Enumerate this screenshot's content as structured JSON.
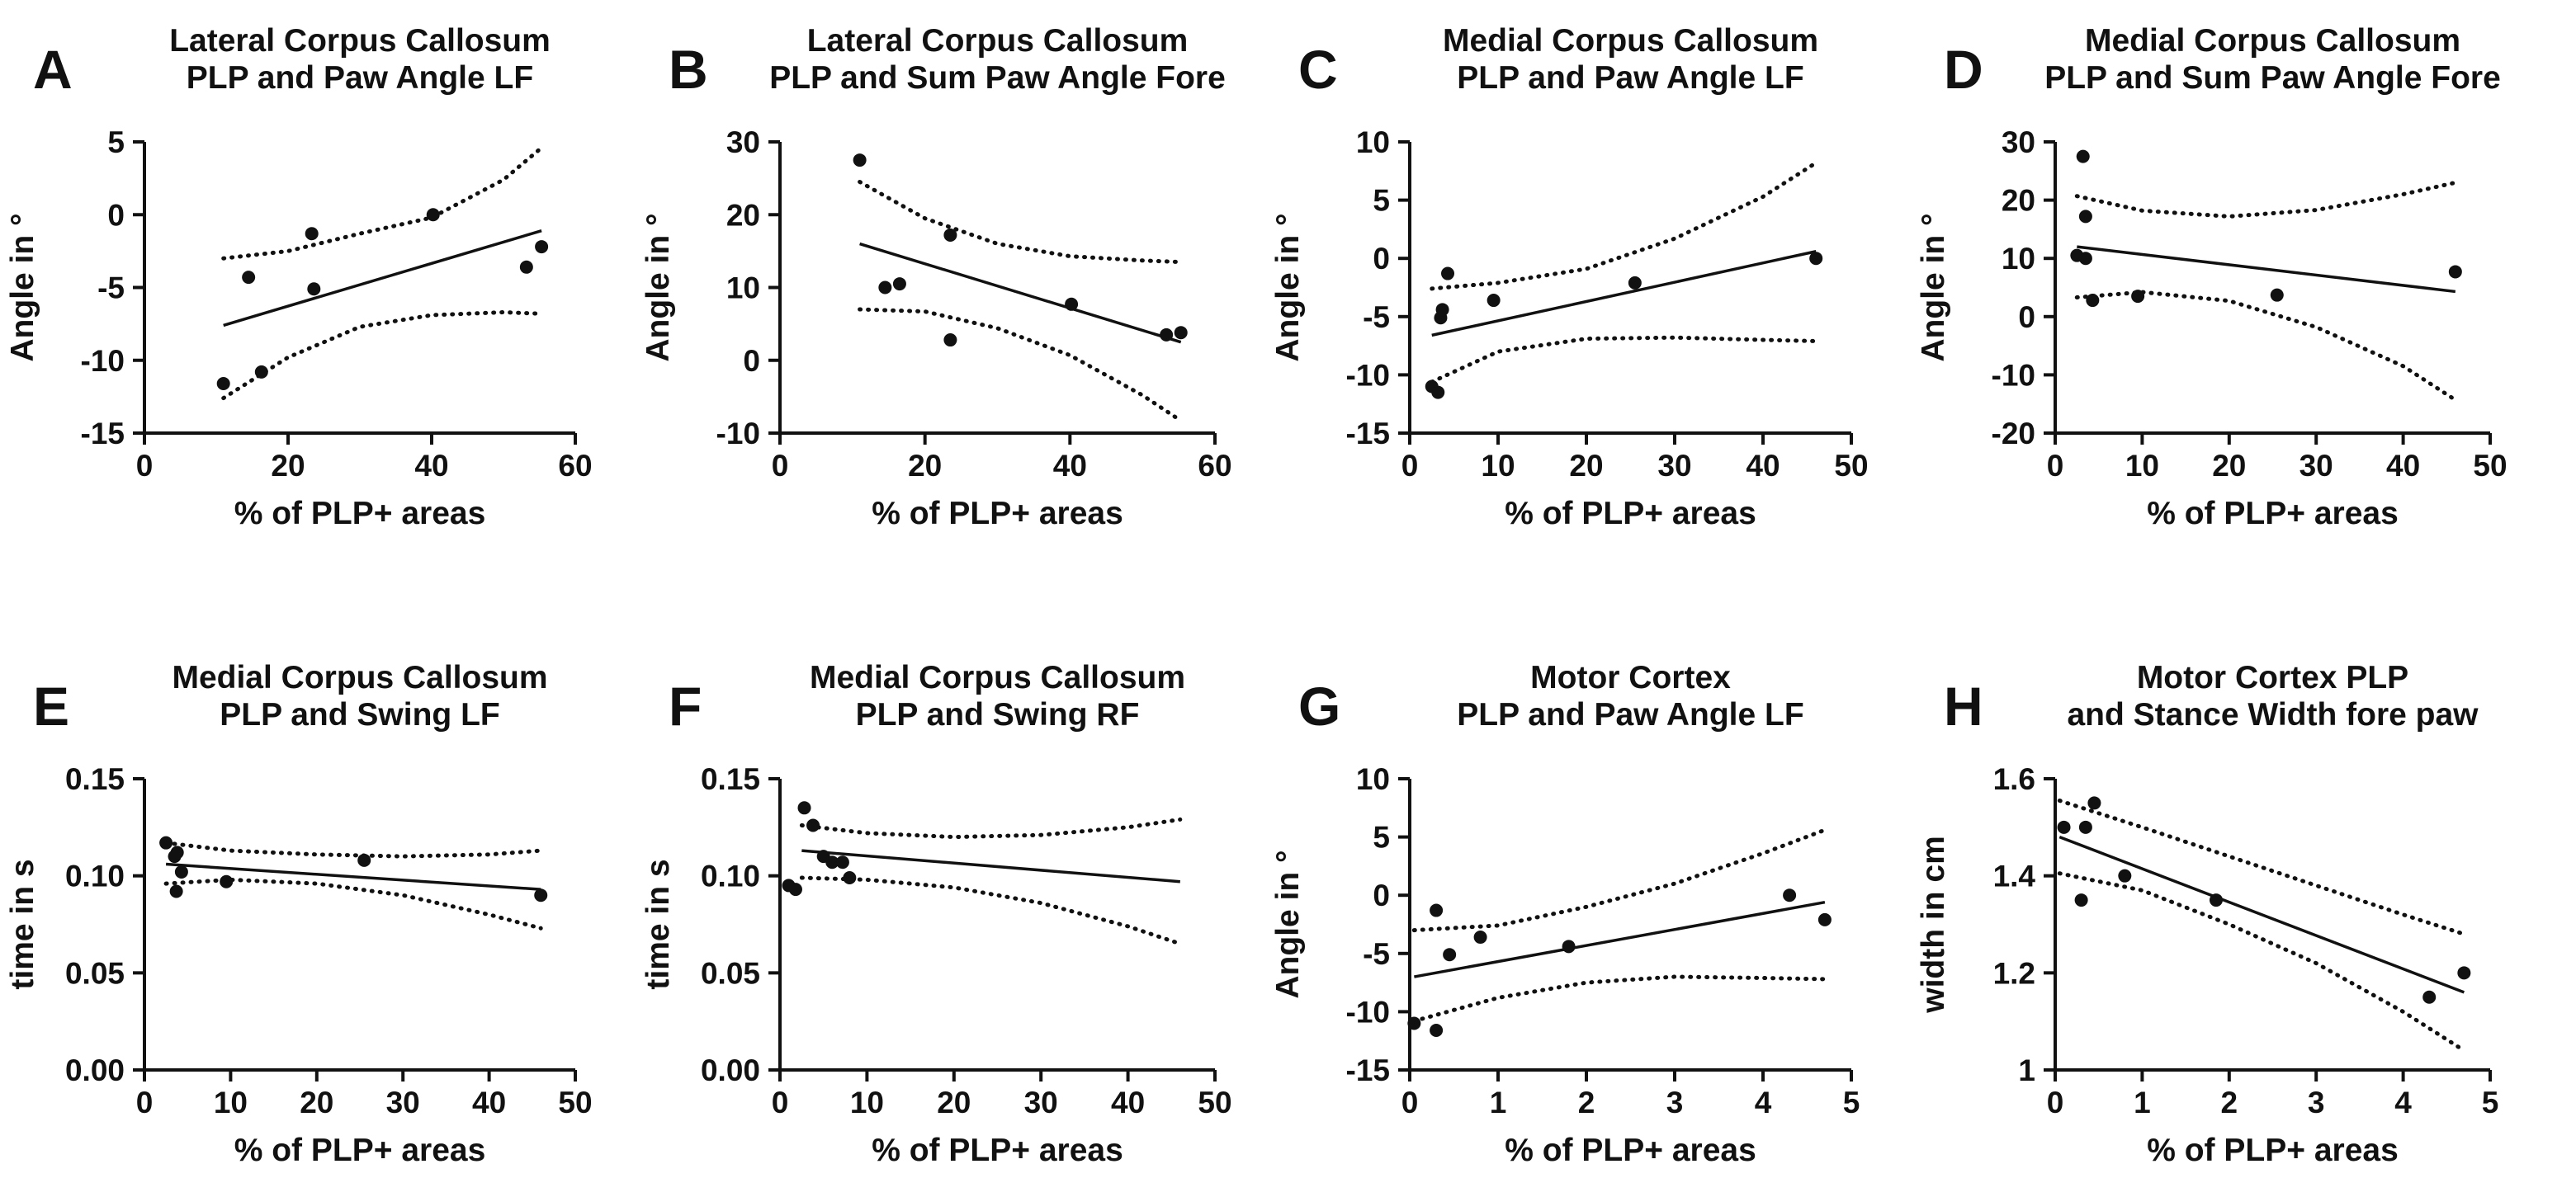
{
  "chart_data": [
    {
      "panel": "A",
      "type": "scatter",
      "title": [
        "Lateral Corpus Callosum",
        "PLP and Paw Angle LF"
      ],
      "xlabel": "% of PLP+ areas",
      "ylabel": "Angle in °",
      "xlim": [
        0,
        60
      ],
      "ylim": [
        -15,
        5
      ],
      "xticks": [
        0,
        20,
        40,
        60
      ],
      "yticks": [
        -15,
        -10,
        -5,
        0,
        5
      ],
      "points": [
        [
          11,
          -11.6
        ],
        [
          14.5,
          -4.3
        ],
        [
          16.3,
          -10.8
        ],
        [
          23.3,
          -1.3
        ],
        [
          23.6,
          -5.1
        ],
        [
          40.2,
          0
        ],
        [
          53.2,
          -3.6
        ],
        [
          55.3,
          -2.2
        ]
      ],
      "fit": {
        "x": [
          11,
          55.3
        ],
        "y": [
          -7.6,
          -1.1
        ]
      },
      "ci_upper": {
        "x": [
          11,
          20,
          30,
          40,
          50,
          55.3
        ],
        "y": [
          -3.0,
          -2.5,
          -1.3,
          -0.2,
          2.4,
          4.6
        ]
      },
      "ci_lower": {
        "x": [
          11,
          20,
          30,
          40,
          50,
          55.3
        ],
        "y": [
          -12.6,
          -9.8,
          -7.7,
          -6.9,
          -6.7,
          -6.8
        ]
      }
    },
    {
      "panel": "B",
      "type": "scatter",
      "title": [
        "Lateral Corpus Callosum",
        "PLP and Sum Paw Angle Fore"
      ],
      "xlabel": "% of PLP+ areas",
      "ylabel": "Angle in °",
      "xlim": [
        0,
        60
      ],
      "ylim": [
        -10,
        30
      ],
      "xticks": [
        0,
        20,
        40,
        60
      ],
      "yticks": [
        -10,
        0,
        10,
        20,
        30
      ],
      "points": [
        [
          11,
          27.5
        ],
        [
          14.5,
          10.0
        ],
        [
          16.5,
          10.5
        ],
        [
          23.5,
          17.2
        ],
        [
          23.5,
          2.8
        ],
        [
          40.2,
          7.7
        ],
        [
          53.3,
          3.5
        ],
        [
          55.3,
          3.8
        ]
      ],
      "fit": {
        "x": [
          11,
          55.3
        ],
        "y": [
          16.0,
          2.5
        ]
      },
      "ci_upper": {
        "x": [
          11,
          20,
          30,
          40,
          50,
          55.3
        ],
        "y": [
          24.5,
          19.5,
          16.0,
          14.3,
          13.7,
          13.5
        ]
      },
      "ci_lower": {
        "x": [
          11,
          20,
          30,
          40,
          50,
          55.3
        ],
        "y": [
          7.0,
          6.7,
          4.4,
          0.7,
          -4.8,
          -8.3
        ]
      }
    },
    {
      "panel": "C",
      "type": "scatter",
      "title": [
        "Medial Corpus Callosum",
        "PLP and Paw Angle LF"
      ],
      "xlabel": "% of PLP+ areas",
      "ylabel": "Angle in °",
      "xlim": [
        0,
        50
      ],
      "ylim": [
        -15,
        10
      ],
      "xticks": [
        0,
        10,
        20,
        30,
        40,
        50
      ],
      "yticks": [
        -15,
        -10,
        -5,
        0,
        5,
        10
      ],
      "points": [
        [
          2.5,
          -11.0
        ],
        [
          3.2,
          -11.5
        ],
        [
          3.5,
          -5.1
        ],
        [
          3.7,
          -4.4
        ],
        [
          4.3,
          -1.3
        ],
        [
          9.5,
          -3.6
        ],
        [
          25.5,
          -2.1
        ],
        [
          46,
          0
        ]
      ],
      "fit": {
        "x": [
          2.5,
          46
        ],
        "y": [
          -6.6,
          0.6
        ]
      },
      "ci_upper": {
        "x": [
          2.5,
          10,
          20,
          30,
          40,
          46
        ],
        "y": [
          -2.6,
          -2.1,
          -0.9,
          1.7,
          5.3,
          8.2
        ]
      },
      "ci_lower": {
        "x": [
          2.5,
          10,
          20,
          30,
          40,
          46
        ],
        "y": [
          -10.6,
          -8.0,
          -6.9,
          -6.8,
          -7.0,
          -7.1
        ]
      }
    },
    {
      "panel": "D",
      "type": "scatter",
      "title": [
        "Medial Corpus Callosum",
        "PLP and Sum Paw Angle Fore"
      ],
      "xlabel": "% of PLP+ areas",
      "ylabel": "Angle in °",
      "xlim": [
        0,
        50
      ],
      "ylim": [
        -20,
        30
      ],
      "xticks": [
        0,
        10,
        20,
        30,
        40,
        50
      ],
      "yticks": [
        -20,
        -10,
        0,
        10,
        20,
        30
      ],
      "points": [
        [
          2.5,
          10.5
        ],
        [
          3.2,
          27.5
        ],
        [
          3.5,
          10.0
        ],
        [
          3.5,
          17.2
        ],
        [
          4.3,
          2.8
        ],
        [
          9.5,
          3.5
        ],
        [
          25.5,
          3.7
        ],
        [
          46,
          7.7
        ]
      ],
      "fit": {
        "x": [
          2.5,
          46
        ],
        "y": [
          12.0,
          4.3
        ]
      },
      "ci_upper": {
        "x": [
          2.5,
          10,
          20,
          30,
          40,
          46
        ],
        "y": [
          20.7,
          18.2,
          17.2,
          18.3,
          21.0,
          23.0
        ]
      },
      "ci_lower": {
        "x": [
          2.5,
          10,
          20,
          30,
          40,
          46
        ],
        "y": [
          3.3,
          4.2,
          2.7,
          -1.8,
          -8.5,
          -14.3
        ]
      }
    },
    {
      "panel": "E",
      "type": "scatter",
      "title": [
        "Medial Corpus Callosum",
        "PLP and Swing LF"
      ],
      "xlabel": "% of PLP+ areas",
      "ylabel": "time in s",
      "xlim": [
        0,
        50
      ],
      "ylim": [
        0.0,
        0.15
      ],
      "xticks": [
        0,
        10,
        20,
        30,
        40,
        50
      ],
      "yticks": [
        0.0,
        0.05,
        0.1,
        0.15
      ],
      "ytick_labels": [
        "0.00",
        "0.05",
        "0.10",
        "0.15"
      ],
      "points": [
        [
          2.5,
          0.117
        ],
        [
          3.5,
          0.11
        ],
        [
          3.8,
          0.112
        ],
        [
          3.7,
          0.092
        ],
        [
          4.3,
          0.102
        ],
        [
          9.5,
          0.097
        ],
        [
          25.5,
          0.108
        ],
        [
          46,
          0.09
        ]
      ],
      "fit": {
        "x": [
          2.5,
          46
        ],
        "y": [
          0.106,
          0.093
        ]
      },
      "ci_upper": {
        "x": [
          2.5,
          10,
          20,
          30,
          40,
          46
        ],
        "y": [
          0.117,
          0.113,
          0.111,
          0.11,
          0.111,
          0.113
        ]
      },
      "ci_lower": {
        "x": [
          2.5,
          10,
          20,
          30,
          40,
          46
        ],
        "y": [
          0.096,
          0.098,
          0.096,
          0.09,
          0.08,
          0.073
        ]
      }
    },
    {
      "panel": "F",
      "type": "scatter",
      "title": [
        "Medial Corpus Callosum",
        "PLP and Swing RF"
      ],
      "xlabel": "% of PLP+ areas",
      "ylabel": "time in s",
      "xlim": [
        0,
        50
      ],
      "ylim": [
        0.0,
        0.15
      ],
      "xticks": [
        0,
        10,
        20,
        30,
        40,
        50
      ],
      "yticks": [
        0.0,
        0.05,
        0.1,
        0.15
      ],
      "ytick_labels": [
        "0.00",
        "0.05",
        "0.10",
        "0.15"
      ],
      "points": [
        [
          1.0,
          0.095
        ],
        [
          1.8,
          0.093
        ],
        [
          2.8,
          0.135
        ],
        [
          3.8,
          0.126
        ],
        [
          5.0,
          0.11
        ],
        [
          6.0,
          0.107
        ],
        [
          7.2,
          0.107
        ],
        [
          8.0,
          0.099
        ]
      ],
      "fit": {
        "x": [
          2.5,
          46
        ],
        "y": [
          0.113,
          0.097
        ]
      },
      "ci_upper": {
        "x": [
          2.5,
          10,
          20,
          30,
          40,
          46
        ],
        "y": [
          0.126,
          0.122,
          0.12,
          0.121,
          0.125,
          0.129
        ]
      },
      "ci_lower": {
        "x": [
          2.5,
          10,
          20,
          30,
          40,
          46
        ],
        "y": [
          0.099,
          0.098,
          0.094,
          0.086,
          0.074,
          0.065
        ]
      }
    },
    {
      "panel": "G",
      "type": "scatter",
      "title": [
        "Motor Cortex",
        "PLP and Paw Angle LF"
      ],
      "xlabel": "% of PLP+ areas",
      "ylabel": "Angle in °",
      "xlim": [
        0,
        5
      ],
      "ylim": [
        -15,
        10
      ],
      "xticks": [
        0,
        1,
        2,
        3,
        4,
        5
      ],
      "yticks": [
        -15,
        -10,
        -5,
        0,
        5,
        10
      ],
      "points": [
        [
          0.05,
          -11.0
        ],
        [
          0.3,
          -11.6
        ],
        [
          0.3,
          -1.3
        ],
        [
          0.45,
          -5.1
        ],
        [
          0.8,
          -3.6
        ],
        [
          1.8,
          -4.4
        ],
        [
          4.3,
          0
        ],
        [
          4.7,
          -2.1
        ]
      ],
      "fit": {
        "x": [
          0.05,
          4.7
        ],
        "y": [
          -7.0,
          -0.6
        ]
      },
      "ci_upper": {
        "x": [
          0.05,
          1,
          2,
          3,
          4,
          4.7
        ],
        "y": [
          -3.0,
          -2.6,
          -1.0,
          1.0,
          3.6,
          5.6
        ]
      },
      "ci_lower": {
        "x": [
          0.05,
          1,
          2,
          3,
          4,
          4.7
        ],
        "y": [
          -10.8,
          -8.8,
          -7.5,
          -7.0,
          -7.1,
          -7.2
        ]
      }
    },
    {
      "panel": "H",
      "type": "scatter",
      "title": [
        "Motor Cortex PLP",
        "and Stance Width fore paw"
      ],
      "xlabel": "% of PLP+ areas",
      "ylabel": "width in cm",
      "xlim": [
        0,
        5
      ],
      "ylim": [
        1.0,
        1.6
      ],
      "xticks": [
        0,
        1,
        2,
        3,
        4,
        5
      ],
      "yticks": [
        1.0,
        1.2,
        1.4,
        1.6
      ],
      "points": [
        [
          0.1,
          1.5
        ],
        [
          0.3,
          1.35
        ],
        [
          0.35,
          1.5
        ],
        [
          0.45,
          1.55
        ],
        [
          0.8,
          1.4
        ],
        [
          1.85,
          1.35
        ],
        [
          4.3,
          1.15
        ],
        [
          4.7,
          1.2
        ]
      ],
      "fit": {
        "x": [
          0.05,
          4.7
        ],
        "y": [
          1.48,
          1.16
        ]
      },
      "ci_upper": {
        "x": [
          0.05,
          1,
          2,
          3,
          4,
          4.7
        ],
        "y": [
          1.555,
          1.5,
          1.44,
          1.38,
          1.32,
          1.28
        ]
      },
      "ci_lower": {
        "x": [
          0.05,
          1,
          2,
          3,
          4,
          4.7
        ],
        "y": [
          1.405,
          1.37,
          1.3,
          1.22,
          1.12,
          1.04
        ]
      }
    }
  ]
}
